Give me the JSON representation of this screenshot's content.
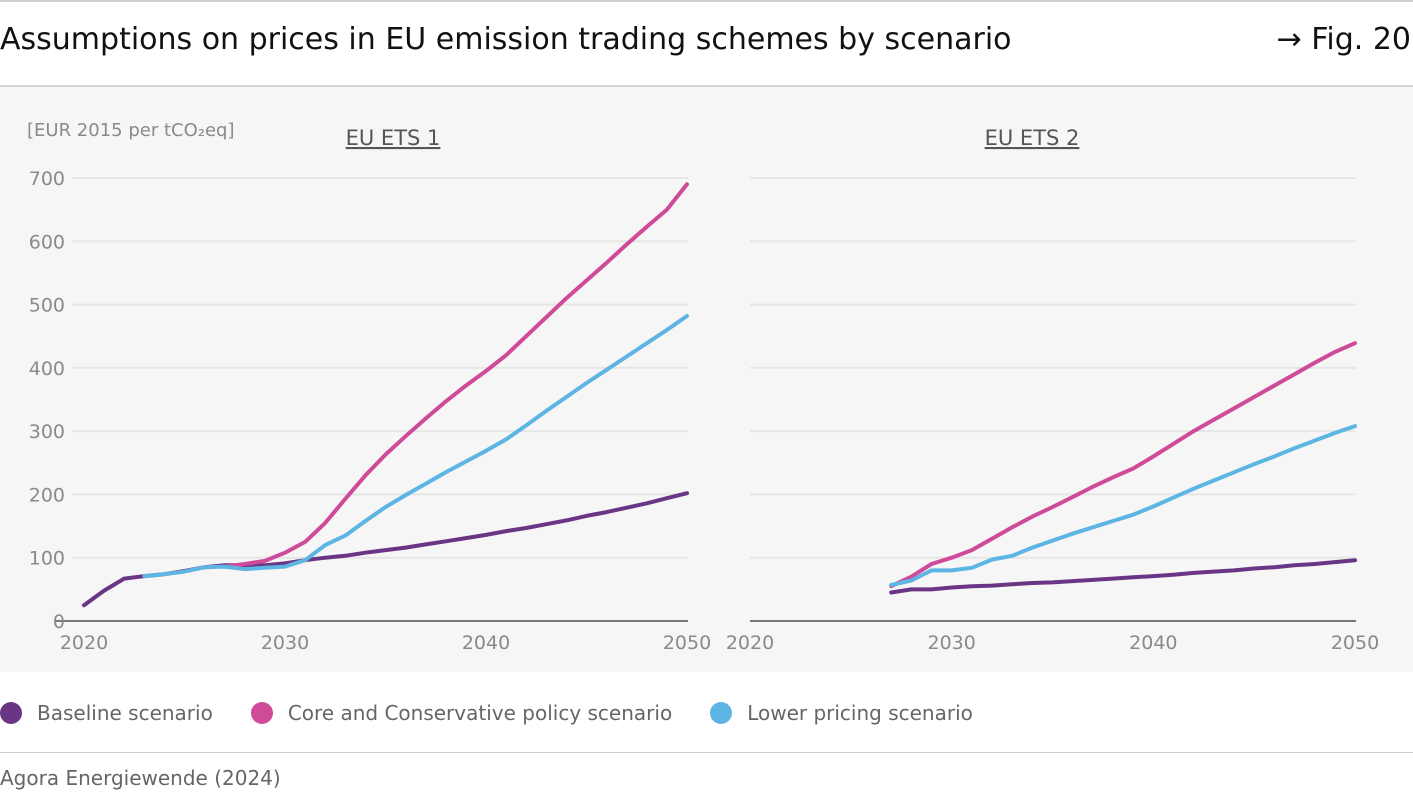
{
  "header": {
    "title": "Assumptions on prices in EU emission trading schemes by scenario",
    "figure_ref": "→ Fig. 20"
  },
  "colors": {
    "baseline": "#6b3585",
    "core": "#cf4a98",
    "lower": "#5db5e3",
    "axis": "#777777",
    "grid": "#e6e6e6",
    "tick_text": "#8a8a8a",
    "panel_bg": "#f6f6f6"
  },
  "legend": [
    {
      "key": "baseline",
      "label": "Baseline scenario"
    },
    {
      "key": "core",
      "label": "Core and Conservative policy scenario"
    },
    {
      "key": "lower",
      "label": "Lower pricing scenario"
    }
  ],
  "source": "Agora Energiewende (2024)",
  "chart_data": [
    {
      "type": "line",
      "title": "EU ETS 1",
      "ylabel": "[EUR 2015 per tCO₂eq]",
      "ylim": [
        0,
        700
      ],
      "xlim": [
        2020,
        2050
      ],
      "yticks": [
        "0",
        "100",
        "200",
        "300",
        "400",
        "500",
        "600",
        "700"
      ],
      "xticks": [
        "2020",
        "2030",
        "2040",
        "2050"
      ],
      "grid": true,
      "series": [
        {
          "key": "baseline",
          "name": "Baseline scenario",
          "x": [
            2020,
            2021,
            2022,
            2023,
            2024,
            2025,
            2026,
            2027,
            2028,
            2029,
            2030,
            2031,
            2032,
            2033,
            2034,
            2035,
            2036,
            2037,
            2038,
            2039,
            2040,
            2041,
            2042,
            2043,
            2044,
            2045,
            2046,
            2047,
            2048,
            2049,
            2050
          ],
          "y": [
            25,
            48,
            67,
            71,
            74,
            79,
            85,
            88,
            88,
            88,
            91,
            96,
            100,
            103,
            108,
            112,
            116,
            121,
            126,
            131,
            136,
            142,
            147,
            153,
            159,
            166,
            172,
            179,
            186,
            194,
            202
          ]
        },
        {
          "key": "core",
          "name": "Core and Conservative policy scenario",
          "x": [
            2027,
            2028,
            2029,
            2030,
            2031,
            2032,
            2033,
            2034,
            2035,
            2036,
            2037,
            2038,
            2039,
            2040,
            2041,
            2042,
            2043,
            2044,
            2045,
            2046,
            2047,
            2048,
            2049,
            2050
          ],
          "y": [
            86,
            90,
            95,
            108,
            125,
            155,
            193,
            230,
            263,
            292,
            320,
            347,
            372,
            395,
            420,
            450,
            480,
            510,
            538,
            566,
            595,
            623,
            650,
            690
          ]
        },
        {
          "key": "lower",
          "name": "Lower pricing scenario",
          "x": [
            2023,
            2024,
            2025,
            2026,
            2027,
            2028,
            2029,
            2030,
            2031,
            2032,
            2033,
            2034,
            2035,
            2036,
            2037,
            2038,
            2039,
            2040,
            2041,
            2042,
            2043,
            2044,
            2045,
            2046,
            2047,
            2048,
            2049,
            2050
          ],
          "y": [
            71,
            74,
            78,
            85,
            86,
            82,
            84,
            86,
            96,
            120,
            135,
            158,
            180,
            199,
            217,
            235,
            252,
            269,
            287,
            309,
            332,
            354,
            376,
            397,
            418,
            439,
            460,
            482
          ]
        }
      ]
    },
    {
      "type": "line",
      "title": "EU ETS 2",
      "ylim": [
        0,
        700
      ],
      "xlim": [
        2020,
        2050
      ],
      "xticks": [
        "2020",
        "2030",
        "2040",
        "2050"
      ],
      "grid": true,
      "series": [
        {
          "key": "baseline",
          "name": "Baseline scenario",
          "x": [
            2027,
            2028,
            2029,
            2030,
            2031,
            2032,
            2033,
            2034,
            2035,
            2036,
            2037,
            2038,
            2039,
            2040,
            2041,
            2042,
            2043,
            2044,
            2045,
            2046,
            2047,
            2048,
            2049,
            2050
          ],
          "y": [
            45,
            50,
            50,
            53,
            55,
            56,
            58,
            60,
            61,
            63,
            65,
            67,
            69,
            71,
            73,
            76,
            78,
            80,
            83,
            85,
            88,
            90,
            93,
            96
          ]
        },
        {
          "key": "core",
          "name": "Core and Conservative policy scenario",
          "x": [
            2027,
            2028,
            2029,
            2030,
            2031,
            2032,
            2033,
            2034,
            2035,
            2036,
            2037,
            2038,
            2039,
            2040,
            2041,
            2042,
            2043,
            2044,
            2045,
            2046,
            2047,
            2048,
            2049,
            2050
          ],
          "y": [
            55,
            70,
            90,
            100,
            112,
            130,
            148,
            165,
            180,
            196,
            212,
            227,
            241,
            260,
            280,
            300,
            318,
            336,
            354,
            372,
            390,
            408,
            425,
            439
          ]
        },
        {
          "key": "lower",
          "name": "Lower pricing scenario",
          "x": [
            2027,
            2028,
            2029,
            2030,
            2031,
            2032,
            2033,
            2034,
            2035,
            2036,
            2037,
            2038,
            2039,
            2040,
            2041,
            2042,
            2043,
            2044,
            2045,
            2046,
            2047,
            2048,
            2049,
            2050
          ],
          "y": [
            57,
            64,
            80,
            80,
            84,
            97,
            103,
            116,
            127,
            138,
            148,
            158,
            168,
            181,
            195,
            209,
            222,
            235,
            248,
            260,
            273,
            285,
            297,
            308
          ]
        }
      ]
    }
  ]
}
